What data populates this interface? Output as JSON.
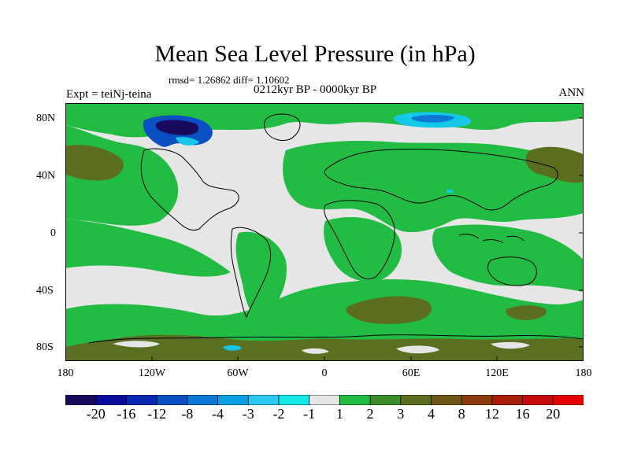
{
  "title": "Mean Sea Level Pressure (in hPa)",
  "stats_text": "rmsd= 1.26862 diff= 1.10602",
  "period_text": "0212kyr BP - 0000kyr BP",
  "experiment_text": "Expt = teiNj-teina",
  "season_text": "ANN",
  "lat_ticks": [
    "80N",
    "40N",
    "0",
    "40S",
    "80S"
  ],
  "lon_ticks": [
    "180",
    "120W",
    "60W",
    "0",
    "60E",
    "120E",
    "180"
  ],
  "colorbar": {
    "labels": [
      "-20",
      "-16",
      "-12",
      "-8",
      "-4",
      "-3",
      "-2",
      "-1",
      "1",
      "2",
      "3",
      "4",
      "8",
      "12",
      "16",
      "20"
    ],
    "colors": [
      "#1a0a5e",
      "#0a0a9c",
      "#0a28b4",
      "#0a4fc4",
      "#0a78d4",
      "#0aa0e6",
      "#2ac8f0",
      "#14e8e8",
      "#e6e6e6",
      "#22bb44",
      "#3c8c2a",
      "#5a6e1e",
      "#6e5614",
      "#8c3c0c",
      "#a81e08",
      "#c40a0a",
      "#e60000"
    ]
  },
  "map_colors": {
    "neutral": "#e6e6e6",
    "green": "#22bb44",
    "olive": "#5a6e1e",
    "brown": "#6e5614",
    "blue": "#0a28b4",
    "cyan": "#14c8e8"
  }
}
